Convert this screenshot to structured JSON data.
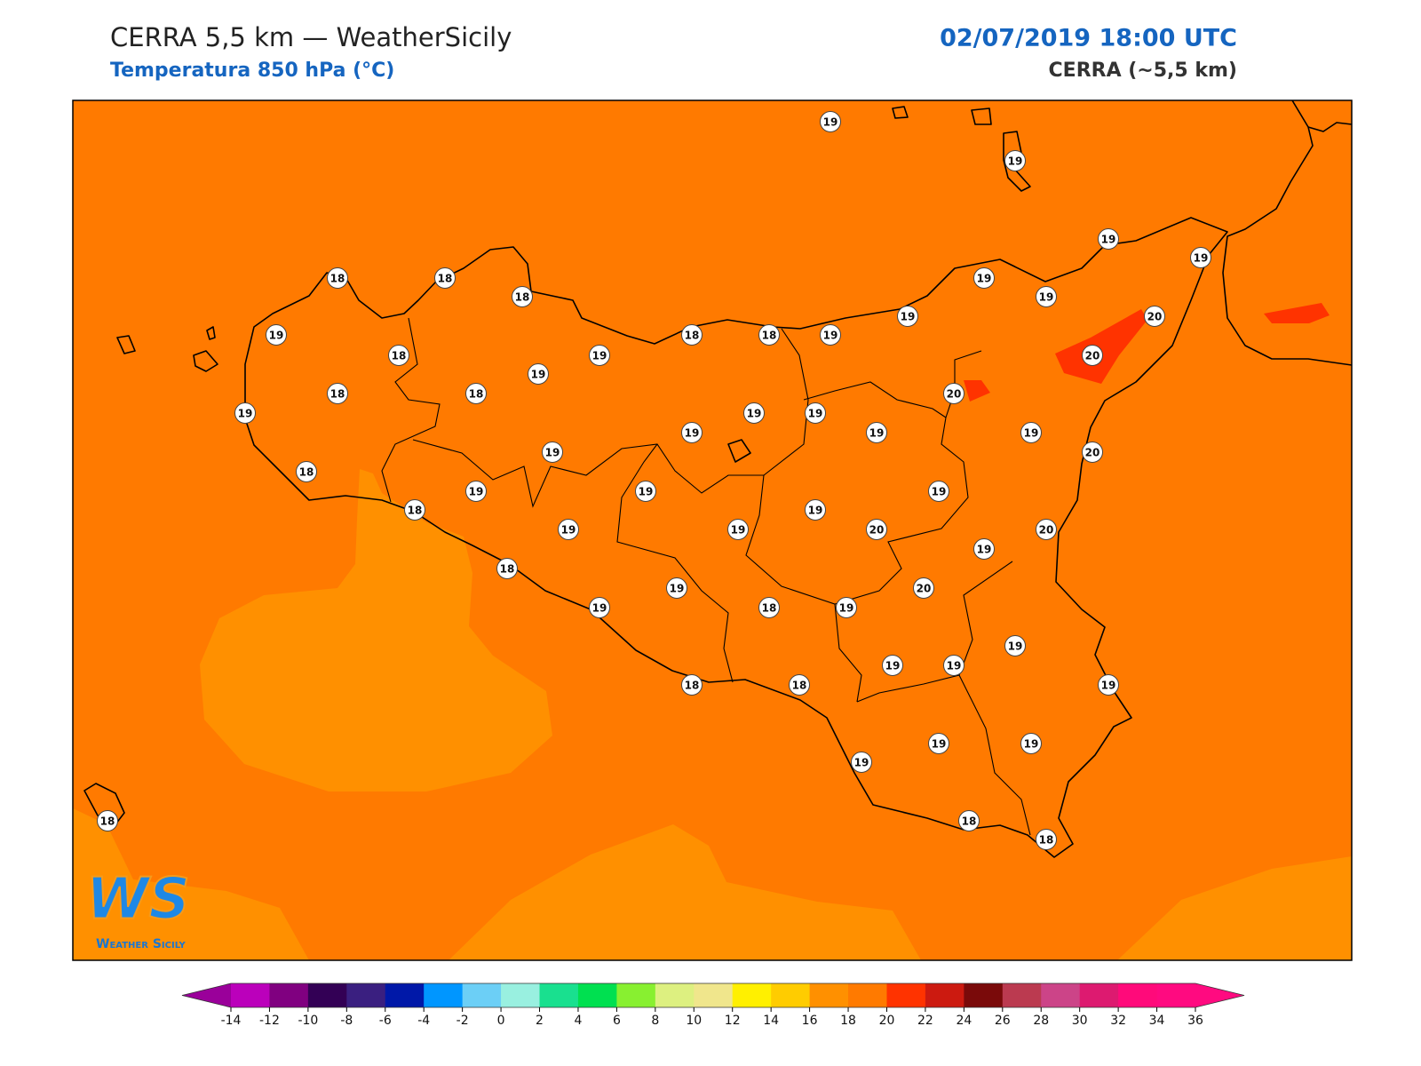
{
  "header": {
    "title": "CERRA 5,5 km — WeatherSicily",
    "subtitle": "Temperatura 850 hPa (°C)",
    "datetime": "02/07/2019 18:00 UTC",
    "source": "CERRA (~5,5 km)"
  },
  "stations": [
    19,
    19,
    19,
    19,
    18,
    18,
    18,
    19,
    19,
    20,
    19,
    19,
    18,
    18,
    19,
    18,
    19,
    20,
    19,
    18,
    18,
    20,
    19,
    19,
    19,
    19,
    19,
    19,
    19,
    20,
    18,
    19,
    19,
    19,
    18,
    19,
    19,
    19,
    20,
    20,
    19,
    18,
    19,
    20,
    19,
    18,
    19,
    19,
    19,
    19,
    18,
    18,
    19,
    19,
    19,
    19,
    18,
    18,
    18
  ],
  "colorbar": {
    "ticks": [
      -14,
      -12,
      -10,
      -8,
      -6,
      -4,
      -2,
      0,
      2,
      4,
      6,
      8,
      10,
      12,
      14,
      16,
      18,
      20,
      22,
      24,
      26,
      28,
      30,
      32,
      34,
      36
    ],
    "colors": [
      "#bb00bb",
      "#800080",
      "#330055",
      "#3a1f80",
      "#0018a8",
      "#0096ff",
      "#6ccff6",
      "#99f0e0",
      "#19e08f",
      "#00e050",
      "#88f030",
      "#ddf080",
      "#f0e68c",
      "#fff000",
      "#ffcc00",
      "#ff9000",
      "#ff7a00",
      "#ff3300",
      "#cc1a10",
      "#7a0a0a",
      "#bb3a50",
      "#cc4488",
      "#dd1a70",
      "#ff0a7a",
      "#ff0a80"
    ],
    "under_color": "#9a009a",
    "over_color": "#ff0a80"
  },
  "logo": {
    "mark": "WS",
    "caption": "Weather Sicily"
  }
}
